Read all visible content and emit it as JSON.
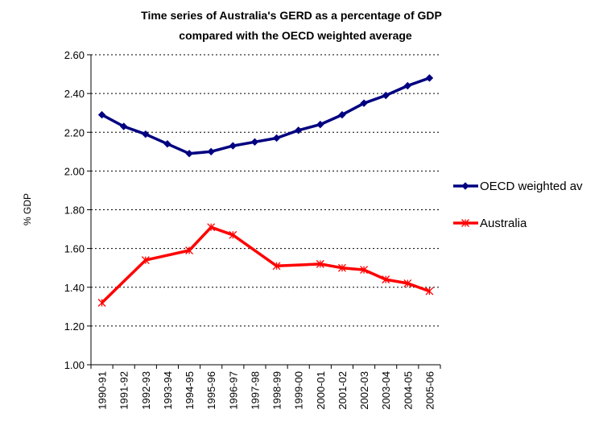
{
  "chart_data": {
    "type": "line",
    "title_lines": [
      "Time series of Australia's GERD as a percentage of GDP",
      "compared with the OECD weighted average"
    ],
    "xlabel": "",
    "ylabel": "% GDP",
    "ylim": [
      1.0,
      2.6
    ],
    "yticks": [
      "2.60",
      "2.40",
      "2.20",
      "2.00",
      "1.80",
      "1.60",
      "1.40",
      "1.20",
      "1.00"
    ],
    "ytick_values": [
      2.6,
      2.4,
      2.2,
      2.0,
      1.8,
      1.6,
      1.4,
      1.2,
      1.0
    ],
    "grid": "horizontal dashed",
    "legend_position": "right",
    "categories": [
      "1990-91",
      "1991-92",
      "1992-93",
      "1993-94",
      "1994-95",
      "1995-96",
      "1996-97",
      "1997-98",
      "1998-99",
      "1999-00",
      "2000-01",
      "2001-02",
      "2002-03",
      "2003-04",
      "2004-05",
      "2005-06"
    ],
    "series": [
      {
        "name": "OECD weighted av",
        "color": "#000080",
        "marker": "diamond",
        "values": [
          2.29,
          2.23,
          2.19,
          2.14,
          2.09,
          2.1,
          2.13,
          2.15,
          2.17,
          2.21,
          2.24,
          2.29,
          2.35,
          2.39,
          2.44,
          2.48
        ]
      },
      {
        "name": "Australia",
        "color": "#ff0000",
        "marker": "asterisk",
        "values": [
          1.32,
          null,
          1.54,
          null,
          1.59,
          1.71,
          1.67,
          null,
          1.51,
          null,
          1.52,
          1.5,
          1.49,
          1.44,
          1.42,
          1.38
        ]
      }
    ]
  }
}
